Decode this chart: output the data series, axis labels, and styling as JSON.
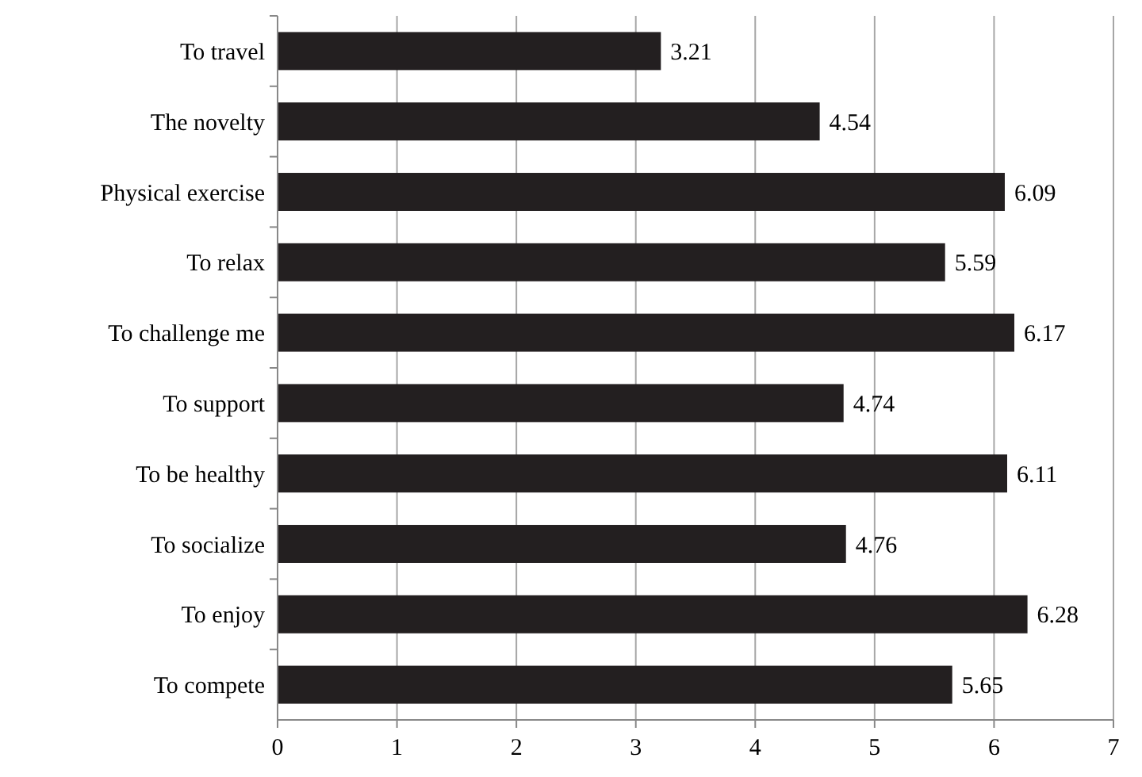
{
  "chart_data": {
    "type": "bar",
    "orientation": "horizontal",
    "categories": [
      "To travel",
      "The novelty",
      "Physical exercise",
      "To relax",
      "To challenge me",
      "To support",
      "To be healthy",
      "To socialize",
      "To enjoy",
      "To compete"
    ],
    "values": [
      3.21,
      4.54,
      6.09,
      5.59,
      6.17,
      4.74,
      6.11,
      4.76,
      6.28,
      5.65
    ],
    "color": "#231f20",
    "xlim": [
      0,
      7
    ],
    "xticks": [
      0,
      1,
      2,
      3,
      4,
      5,
      6,
      7
    ],
    "grid": "x",
    "data_labels": true
  }
}
